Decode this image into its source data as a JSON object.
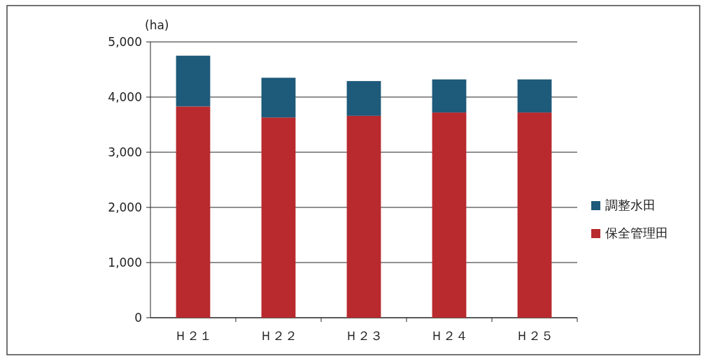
{
  "chart_data": {
    "type": "bar",
    "stacked": true,
    "ylabel": "(ha)",
    "categories": [
      "Ｈ２１",
      "Ｈ２２",
      "Ｈ２３",
      "Ｈ２４",
      "Ｈ２５"
    ],
    "series": [
      {
        "name": "保全管理田",
        "color": "#b82a2e",
        "values": [
          3830,
          3630,
          3660,
          3720,
          3720
        ]
      },
      {
        "name": "調整水田",
        "color": "#1e5a7a",
        "values": [
          920,
          720,
          630,
          600,
          600
        ]
      }
    ],
    "ylim": [
      0,
      5000
    ],
    "yticks": [
      {
        "value": 0,
        "label": "0"
      },
      {
        "value": 1000,
        "label": "1,000"
      },
      {
        "value": 2000,
        "label": "2,000"
      },
      {
        "value": 3000,
        "label": "3,000"
      },
      {
        "value": 4000,
        "label": "4,000"
      },
      {
        "value": 5000,
        "label": "5,000"
      }
    ],
    "grid": "y",
    "legend": "right"
  }
}
